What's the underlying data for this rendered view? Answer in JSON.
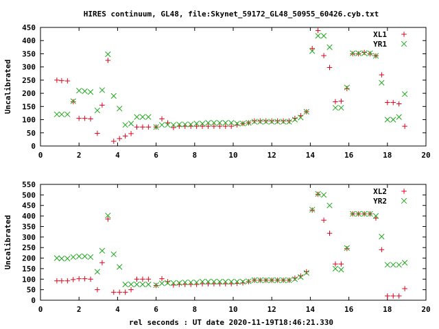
{
  "title": "HIRES continuum, GL48, file:Skynet_59172_GL48_50955_60426.cyb.txt",
  "xlabel": "rel seconds : UT date 2020-11-19T18:46:21.330",
  "colors": {
    "red": "#e0001a",
    "green": "#1aa81a",
    "axis": "#000000"
  },
  "chart_data": [
    {
      "type": "scatter",
      "ylabel": "Uncalibrated",
      "xlim": [
        0,
        20
      ],
      "ylim": [
        0,
        450
      ],
      "x_ticks": [
        0,
        2,
        4,
        6,
        8,
        10,
        12,
        14,
        16,
        18,
        20
      ],
      "y_ticks": [
        0,
        50,
        100,
        150,
        200,
        250,
        300,
        350,
        400,
        450
      ],
      "legend_position": "top-right",
      "series": [
        {
          "name": "XL1",
          "marker": "plus",
          "color": "#e0001a",
          "x": [
            0.85,
            1.1,
            1.4,
            1.7,
            2.0,
            2.3,
            2.6,
            2.95,
            3.2,
            3.5,
            3.8,
            4.1,
            4.4,
            4.7,
            5.0,
            5.3,
            5.6,
            6.0,
            6.3,
            6.6,
            6.9,
            7.2,
            7.5,
            7.8,
            8.1,
            8.4,
            8.7,
            9.0,
            9.3,
            9.6,
            9.9,
            10.2,
            10.5,
            10.8,
            11.1,
            11.4,
            11.7,
            12.0,
            12.3,
            12.6,
            12.9,
            13.2,
            13.5,
            13.8,
            14.1,
            14.4,
            14.7,
            15.0,
            15.3,
            15.6,
            15.9,
            16.2,
            16.5,
            16.8,
            17.1,
            17.4,
            17.7,
            18.0,
            18.3,
            18.6,
            18.9
          ],
          "y": [
            250,
            248,
            247,
            168,
            105,
            105,
            103,
            48,
            155,
            325,
            18,
            28,
            38,
            47,
            72,
            72,
            72,
            72,
            103,
            88,
            70,
            75,
            75,
            75,
            75,
            75,
            75,
            75,
            75,
            75,
            75,
            80,
            85,
            88,
            95,
            95,
            95,
            95,
            95,
            95,
            95,
            105,
            115,
            130,
            370,
            438,
            343,
            298,
            168,
            170,
            218,
            350,
            350,
            355,
            350,
            342,
            270,
            165,
            165,
            160,
            75
          ]
        },
        {
          "name": "YR1",
          "marker": "x",
          "color": "#1aa81a",
          "x": [
            0.85,
            1.1,
            1.4,
            1.7,
            2.0,
            2.3,
            2.6,
            2.95,
            3.2,
            3.5,
            3.8,
            4.1,
            4.4,
            4.7,
            5.0,
            5.3,
            5.6,
            6.0,
            6.3,
            6.6,
            6.9,
            7.2,
            7.5,
            7.8,
            8.1,
            8.4,
            8.7,
            9.0,
            9.3,
            9.6,
            9.9,
            10.2,
            10.5,
            10.8,
            11.1,
            11.4,
            11.7,
            12.0,
            12.3,
            12.6,
            12.9,
            13.2,
            13.5,
            13.8,
            14.1,
            14.4,
            14.7,
            15.0,
            15.3,
            15.6,
            15.9,
            16.2,
            16.5,
            16.8,
            17.1,
            17.4,
            17.7,
            18.0,
            18.3,
            18.6,
            18.9
          ],
          "y": [
            120,
            120,
            120,
            170,
            210,
            208,
            205,
            135,
            212,
            348,
            190,
            142,
            80,
            85,
            110,
            110,
            110,
            72,
            80,
            80,
            80,
            82,
            82,
            82,
            85,
            85,
            88,
            88,
            88,
            88,
            88,
            85,
            85,
            88,
            92,
            92,
            92,
            92,
            92,
            92,
            92,
            100,
            108,
            130,
            360,
            418,
            418,
            375,
            145,
            145,
            222,
            352,
            352,
            352,
            352,
            342,
            240,
            100,
            100,
            110,
            197
          ]
        }
      ]
    },
    {
      "type": "scatter",
      "ylabel": "Uncalibrated",
      "xlim": [
        0,
        20
      ],
      "ylim": [
        0,
        550
      ],
      "x_ticks": [
        0,
        2,
        4,
        6,
        8,
        10,
        12,
        14,
        16,
        18,
        20
      ],
      "y_ticks": [
        0,
        50,
        100,
        150,
        200,
        250,
        300,
        350,
        400,
        450,
        500,
        550
      ],
      "legend_position": "top-right",
      "series": [
        {
          "name": "XL2",
          "marker": "plus",
          "color": "#e0001a",
          "x": [
            0.85,
            1.1,
            1.4,
            1.7,
            2.0,
            2.3,
            2.6,
            2.95,
            3.2,
            3.5,
            3.8,
            4.1,
            4.4,
            4.7,
            5.0,
            5.3,
            5.6,
            6.0,
            6.3,
            6.6,
            6.9,
            7.2,
            7.5,
            7.8,
            8.1,
            8.4,
            8.7,
            9.0,
            9.3,
            9.6,
            9.9,
            10.2,
            10.5,
            10.8,
            11.1,
            11.4,
            11.7,
            12.0,
            12.3,
            12.6,
            12.9,
            13.2,
            13.5,
            13.8,
            14.1,
            14.4,
            14.7,
            15.0,
            15.3,
            15.6,
            15.9,
            16.2,
            16.5,
            16.8,
            17.1,
            17.4,
            17.7,
            18.0,
            18.3,
            18.6,
            18.9
          ],
          "y": [
            92,
            92,
            92,
            98,
            102,
            102,
            100,
            50,
            178,
            385,
            38,
            38,
            38,
            50,
            100,
            100,
            100,
            70,
            102,
            88,
            72,
            75,
            75,
            75,
            75,
            78,
            78,
            78,
            78,
            78,
            78,
            80,
            82,
            88,
            95,
            95,
            95,
            95,
            95,
            95,
            95,
            105,
            115,
            135,
            428,
            503,
            380,
            318,
            172,
            172,
            245,
            410,
            410,
            410,
            410,
            390,
            240,
            20,
            20,
            20,
            55
          ]
        },
        {
          "name": "YR2",
          "marker": "x",
          "color": "#1aa81a",
          "x": [
            0.85,
            1.1,
            1.4,
            1.7,
            2.0,
            2.3,
            2.6,
            2.95,
            3.2,
            3.5,
            3.8,
            4.1,
            4.4,
            4.7,
            5.0,
            5.3,
            5.6,
            6.0,
            6.3,
            6.6,
            6.9,
            7.2,
            7.5,
            7.8,
            8.1,
            8.4,
            8.7,
            9.0,
            9.3,
            9.6,
            9.9,
            10.2,
            10.5,
            10.8,
            11.1,
            11.4,
            11.7,
            12.0,
            12.3,
            12.6,
            12.9,
            13.2,
            13.5,
            13.8,
            14.1,
            14.4,
            14.7,
            15.0,
            15.3,
            15.6,
            15.9,
            16.2,
            16.5,
            16.8,
            17.1,
            17.4,
            17.7,
            18.0,
            18.3,
            18.6,
            18.9
          ],
          "y": [
            200,
            198,
            198,
            205,
            208,
            208,
            205,
            135,
            235,
            402,
            218,
            158,
            75,
            75,
            75,
            75,
            75,
            72,
            80,
            82,
            82,
            82,
            85,
            85,
            85,
            88,
            88,
            88,
            88,
            88,
            88,
            88,
            88,
            90,
            95,
            95,
            95,
            95,
            95,
            95,
            95,
            100,
            110,
            130,
            430,
            505,
            500,
            450,
            150,
            145,
            248,
            410,
            410,
            410,
            410,
            400,
            302,
            168,
            168,
            168,
            178
          ]
        }
      ]
    }
  ]
}
